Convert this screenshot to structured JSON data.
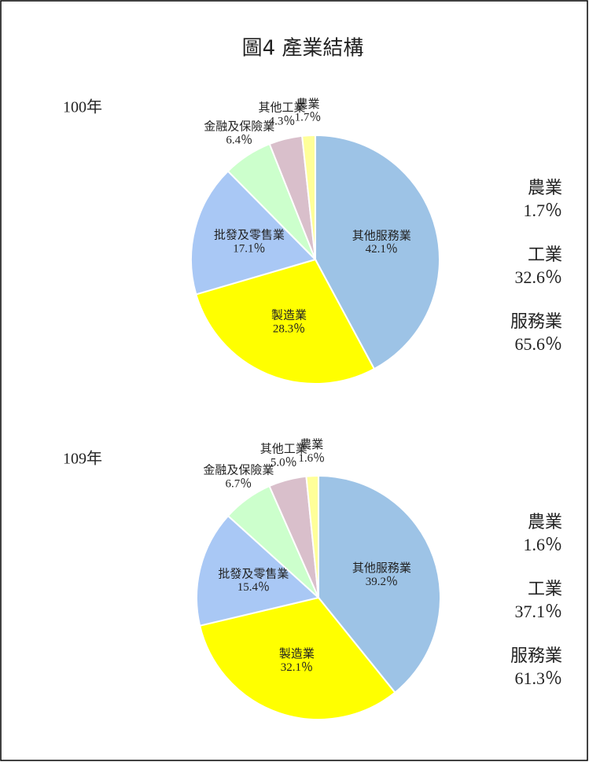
{
  "title": "圖4 產業結構",
  "chart_data": [
    {
      "type": "pie",
      "title": "100年",
      "categories": [
        "其他服務業",
        "製造業",
        "批發及零售業",
        "金融及保險業",
        "其他工業",
        "農業"
      ],
      "values": [
        42.1,
        28.3,
        17.1,
        6.4,
        4.3,
        1.7
      ],
      "value_labels": [
        "42.1％",
        "28.3％",
        "17.1％",
        "6.4％",
        "4.3％",
        "1.7％"
      ],
      "colors": [
        "#9dc3e6",
        "#ffff00",
        "#a9c8f5",
        "#ccffcc",
        "#d9bfcb",
        "#ffff99"
      ],
      "summary": {
        "categories": [
          "農業",
          "工業",
          "服務業"
        ],
        "values": [
          1.7,
          32.6,
          65.6
        ],
        "value_labels": [
          "1.7％",
          "32.6％",
          "65.6％"
        ]
      }
    },
    {
      "type": "pie",
      "title": "109年",
      "categories": [
        "其他服務業",
        "製造業",
        "批發及零售業",
        "金融及保險業",
        "其他工業",
        "農業"
      ],
      "values": [
        39.2,
        32.1,
        15.4,
        6.7,
        5.0,
        1.6
      ],
      "value_labels": [
        "39.2％",
        "32.1％",
        "15.4％",
        "6.7％",
        "5.0％",
        "1.6％"
      ],
      "colors": [
        "#9dc3e6",
        "#ffff00",
        "#a9c8f5",
        "#ccffcc",
        "#d9bfcb",
        "#ffff99"
      ],
      "summary": {
        "categories": [
          "農業",
          "工業",
          "服務業"
        ],
        "values": [
          1.6,
          37.1,
          61.3
        ],
        "value_labels": [
          "1.6％",
          "37.1％",
          "61.3％"
        ]
      }
    }
  ]
}
